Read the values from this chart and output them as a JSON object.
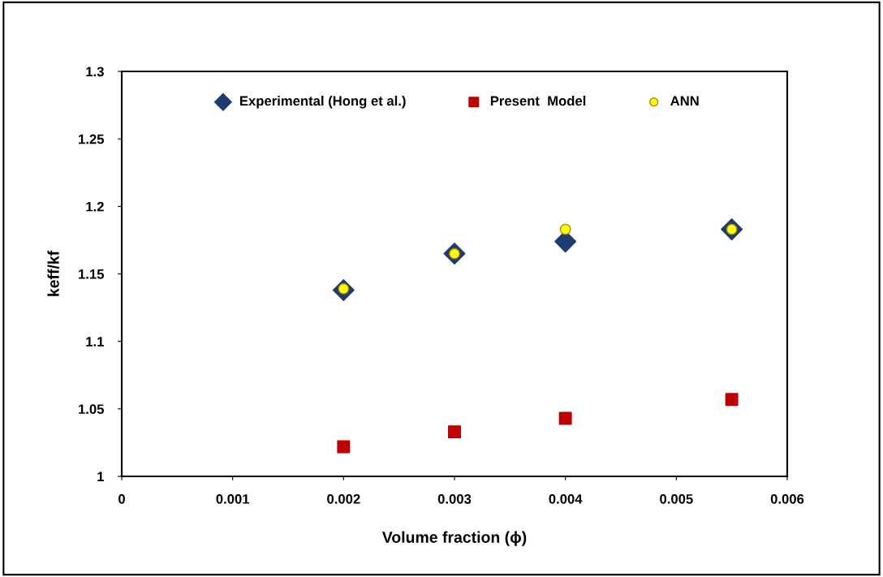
{
  "chart_data": {
    "type": "scatter",
    "xlabel": "Volume fraction (ϕ)",
    "ylabel": "keff/kf",
    "x": [
      0.002,
      0.003,
      0.004,
      0.0055
    ],
    "series": [
      {
        "name": "Experimental (Hong et al.)",
        "color": "#1f3b73",
        "marker": "diamond",
        "values": [
          1.138,
          1.165,
          1.174,
          1.183
        ]
      },
      {
        "name": "Present  Model",
        "color": "#c00000",
        "marker": "square",
        "values": [
          1.022,
          1.033,
          1.043,
          1.057
        ]
      },
      {
        "name": "ANN",
        "color": "#ffff00",
        "marker": "circle",
        "values": [
          1.139,
          1.165,
          1.183,
          1.183
        ]
      }
    ],
    "xlim": [
      0,
      0.006
    ],
    "xticks": [
      0,
      0.001,
      0.002,
      0.003,
      0.004,
      0.005,
      0.006
    ],
    "ylim": [
      1,
      1.3
    ],
    "yticks": [
      1,
      1.05,
      1.1,
      1.15,
      1.2,
      1.25,
      1.3
    ],
    "grid": false,
    "legend": "top"
  }
}
